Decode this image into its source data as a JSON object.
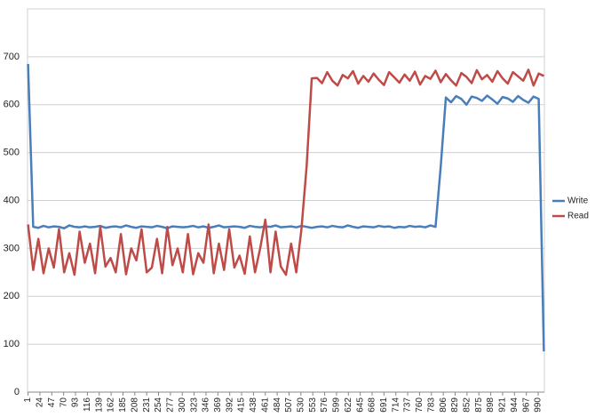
{
  "chart_data": {
    "type": "line",
    "x": [
      1,
      11,
      21,
      31,
      41,
      51,
      61,
      71,
      81,
      91,
      101,
      111,
      121,
      131,
      141,
      151,
      161,
      171,
      181,
      191,
      201,
      211,
      221,
      231,
      241,
      251,
      261,
      271,
      281,
      291,
      301,
      311,
      321,
      331,
      341,
      351,
      361,
      371,
      381,
      391,
      401,
      411,
      421,
      431,
      441,
      451,
      461,
      471,
      481,
      491,
      501,
      511,
      521,
      531,
      541,
      551,
      561,
      571,
      581,
      591,
      601,
      611,
      621,
      631,
      641,
      651,
      661,
      671,
      681,
      691,
      701,
      711,
      721,
      731,
      741,
      751,
      761,
      771,
      781,
      791,
      801,
      811,
      821,
      831,
      841,
      851,
      861,
      871,
      881,
      891,
      901,
      911,
      921,
      931,
      941,
      951,
      961,
      971,
      981,
      991,
      1001
    ],
    "series": [
      {
        "name": "Write",
        "color": "#4a7ebb",
        "values": [
          685,
          345,
          343,
          347,
          344,
          346,
          345,
          342,
          348,
          345,
          344,
          346,
          344,
          345,
          347,
          343,
          345,
          346,
          344,
          348,
          345,
          343,
          346,
          345,
          344,
          347,
          345,
          342,
          346,
          345,
          344,
          345,
          347,
          344,
          346,
          343,
          345,
          348,
          344,
          345,
          346,
          345,
          343,
          347,
          345,
          344,
          346,
          345,
          348,
          344,
          345,
          346,
          344,
          347,
          345,
          343,
          345,
          346,
          344,
          347,
          345,
          344,
          348,
          345,
          343,
          346,
          345,
          344,
          347,
          345,
          346,
          343,
          345,
          344,
          347,
          345,
          346,
          344,
          348,
          345,
          470,
          615,
          605,
          618,
          612,
          600,
          617,
          614,
          608,
          619,
          611,
          602,
          616,
          613,
          606,
          618,
          610,
          604,
          617,
          612,
          85
        ]
      },
      {
        "name": "Read",
        "color": "#be4b48",
        "values": [
          350,
          255,
          320,
          248,
          300,
          260,
          340,
          250,
          290,
          245,
          335,
          270,
          310,
          248,
          345,
          262,
          280,
          250,
          330,
          246,
          300,
          275,
          340,
          250,
          260,
          320,
          248,
          345,
          265,
          300,
          250,
          330,
          246,
          290,
          270,
          350,
          248,
          310,
          255,
          340,
          260,
          285,
          247,
          325,
          250,
          300,
          360,
          250,
          335,
          262,
          245,
          310,
          250,
          340,
          470,
          655,
          656,
          645,
          668,
          650,
          640,
          662,
          655,
          670,
          644,
          660,
          648,
          665,
          652,
          641,
          668,
          657,
          646,
          663,
          650,
          669,
          642,
          660,
          654,
          671,
          647,
          664,
          651,
          640,
          666,
          658,
          645,
          672,
          653,
          662,
          648,
          670,
          655,
          644,
          668,
          659,
          650,
          673,
          640,
          665,
          660
        ]
      }
    ],
    "xlim": [
      0,
      1002
    ],
    "xticks": [
      1,
      24,
      47,
      70,
      93,
      116,
      139,
      162,
      185,
      208,
      231,
      254,
      277,
      300,
      323,
      346,
      369,
      392,
      415,
      438,
      461,
      484,
      507,
      530,
      553,
      576,
      599,
      622,
      645,
      668,
      691,
      714,
      737,
      760,
      783,
      806,
      829,
      852,
      875,
      898,
      921,
      944,
      967,
      990
    ],
    "ylim": [
      0,
      800
    ],
    "yticks": [
      0,
      100,
      200,
      300,
      400,
      500,
      600,
      700
    ],
    "grid": true,
    "legend": "right"
  }
}
